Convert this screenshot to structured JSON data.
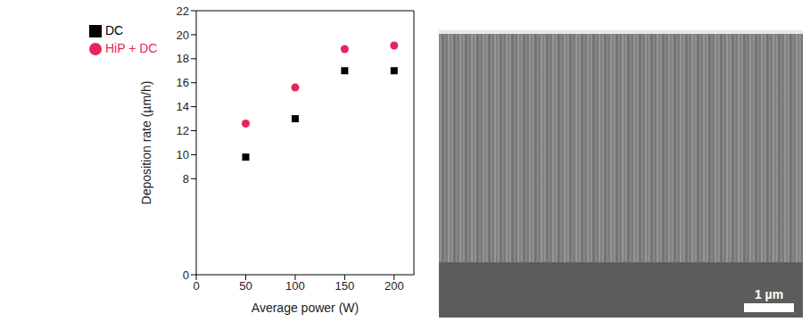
{
  "chart_data": {
    "type": "scatter",
    "x": [
      50,
      100,
      150,
      200
    ],
    "series": [
      {
        "name": "DC",
        "color": "#000000",
        "marker": "square",
        "values": [
          9.8,
          13.0,
          17.0,
          17.0
        ]
      },
      {
        "name": "HiP + DC",
        "color": "#e8255a",
        "marker": "circle",
        "values": [
          12.6,
          15.6,
          18.8,
          19.1
        ]
      }
    ],
    "x_label": "Average power (W)",
    "y_label": "Deposition rate (µm/h)",
    "xlim": [
      0,
      220
    ],
    "xticks": [
      0,
      50,
      100,
      150,
      200
    ],
    "ylim": [
      0,
      22
    ],
    "yticks": [
      0,
      8,
      10,
      12,
      14,
      16,
      18,
      20,
      22
    ],
    "legend": "upper left",
    "grid": false
  },
  "micrograph": {
    "scale_bar_label": "1 µm"
  }
}
